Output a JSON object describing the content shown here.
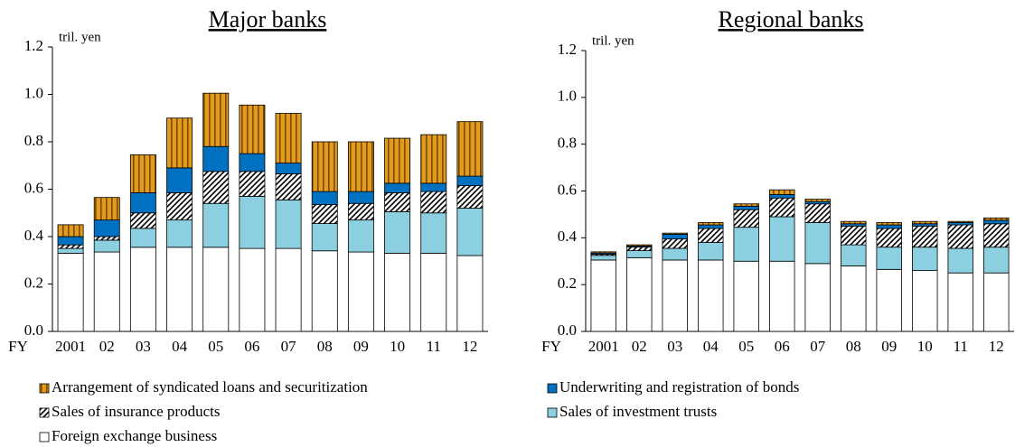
{
  "chart_data": [
    {
      "type": "stacked-bar",
      "title": "Major banks",
      "y_label": "tril. yen",
      "x_prefix": "FY",
      "categories": [
        "2001",
        "02",
        "03",
        "04",
        "05",
        "06",
        "07",
        "08",
        "09",
        "10",
        "11",
        "12"
      ],
      "ylim": [
        0,
        1.2
      ],
      "yticks": [
        {
          "value": 0,
          "label": "0.0"
        },
        {
          "value": 0.2,
          "label": "0.2"
        },
        {
          "value": 0.4,
          "label": "0.4"
        },
        {
          "value": 0.6,
          "label": "0.6"
        },
        {
          "value": 0.8,
          "label": "0.8"
        },
        {
          "value": 1.0,
          "label": "1.0"
        },
        {
          "value": 1.2,
          "label": "1.2"
        }
      ],
      "series": [
        {
          "name": "Foreign exchange business",
          "color": "#ffffff",
          "pattern": "solid",
          "values": [
            0.33,
            0.335,
            0.355,
            0.355,
            0.355,
            0.35,
            0.35,
            0.34,
            0.335,
            0.33,
            0.33,
            0.32
          ]
        },
        {
          "name": "Sales of investment trusts",
          "color": "#8ccfe0",
          "pattern": "solid",
          "values": [
            0.02,
            0.05,
            0.08,
            0.115,
            0.185,
            0.22,
            0.205,
            0.115,
            0.135,
            0.175,
            0.17,
            0.2
          ]
        },
        {
          "name": "Sales of insurance products",
          "color": "#ffffff",
          "pattern": "diagonal-stripes",
          "values": [
            0.015,
            0.015,
            0.065,
            0.115,
            0.135,
            0.105,
            0.11,
            0.08,
            0.07,
            0.08,
            0.09,
            0.095
          ]
        },
        {
          "name": "Underwriting and registration of bonds",
          "color": "#0070c0",
          "pattern": "solid",
          "values": [
            0.035,
            0.07,
            0.085,
            0.105,
            0.105,
            0.075,
            0.045,
            0.055,
            0.05,
            0.04,
            0.035,
            0.04
          ]
        },
        {
          "name": "Arrangement of syndicated loans and securitization",
          "color": "#e39b1c",
          "pattern": "vertical-stripes",
          "values": [
            0.05,
            0.095,
            0.16,
            0.21,
            0.225,
            0.205,
            0.21,
            0.21,
            0.21,
            0.19,
            0.205,
            0.23
          ]
        }
      ]
    },
    {
      "type": "stacked-bar",
      "title": "Regional banks",
      "y_label": "tril. yen",
      "x_prefix": "FY",
      "categories": [
        "2001",
        "02",
        "03",
        "04",
        "05",
        "06",
        "07",
        "08",
        "09",
        "10",
        "11",
        "12"
      ],
      "ylim": [
        0,
        1.2
      ],
      "yticks": [
        {
          "value": 0,
          "label": "0.0"
        },
        {
          "value": 0.2,
          "label": "0.2"
        },
        {
          "value": 0.4,
          "label": "0.4"
        },
        {
          "value": 0.6,
          "label": "0.6"
        },
        {
          "value": 0.8,
          "label": "0.8"
        },
        {
          "value": 1.0,
          "label": "1.0"
        },
        {
          "value": 1.2,
          "label": "1.2"
        }
      ],
      "series": [
        {
          "values": [
            0.305,
            0.315,
            0.305,
            0.305,
            0.3,
            0.3,
            0.29,
            0.28,
            0.265,
            0.26,
            0.25,
            0.25
          ]
        },
        {
          "values": [
            0.02,
            0.03,
            0.05,
            0.075,
            0.145,
            0.19,
            0.175,
            0.09,
            0.095,
            0.1,
            0.105,
            0.11
          ]
        },
        {
          "values": [
            0.005,
            0.015,
            0.04,
            0.06,
            0.075,
            0.08,
            0.08,
            0.08,
            0.08,
            0.09,
            0.1,
            0.1
          ]
        },
        {
          "values": [
            0.005,
            0.005,
            0.02,
            0.015,
            0.015,
            0.015,
            0.01,
            0.01,
            0.015,
            0.01,
            0.01,
            0.015
          ]
        },
        {
          "values": [
            0.005,
            0.005,
            0.005,
            0.01,
            0.01,
            0.02,
            0.01,
            0.01,
            0.01,
            0.01,
            0.005,
            0.01
          ]
        }
      ]
    }
  ]
}
